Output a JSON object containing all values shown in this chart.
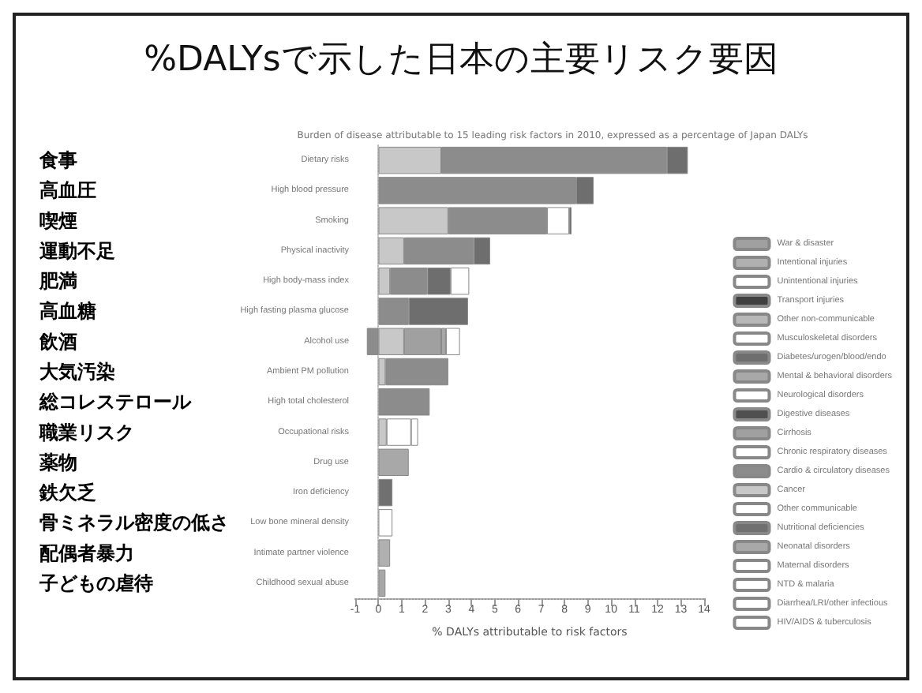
{
  "chart_data": {
    "type": "bar",
    "orientation": "horizontal",
    "stacked": true,
    "title": "%DALYsで示した日本の主要リスク要因",
    "subtitle": "Burden of disease attributable to 15 leading risk factors in 2010, expressed as a percentage of Japan DALYs",
    "xlabel": "% DALYs attributable to risk factors",
    "categories": [
      "Dietary risks",
      "High blood pressure",
      "Smoking",
      "Physical inactivity",
      "High body-mass index",
      "High fasting plasma glucose",
      "Alcohol use",
      "Ambient PM pollution",
      "High total cholesterol",
      "Occupational risks",
      "Drug use",
      "Iron deficiency",
      "Low bone mineral density",
      "Intimate partner violence",
      "Childhood sexual abuse"
    ],
    "y2_categories": [
      "食事",
      "高血圧",
      "喫煙",
      "運動不足",
      "肥満",
      "高血糖",
      "飲酒",
      "大気汚染",
      "総コレステロール",
      "職業リスク",
      "薬物",
      "鉄欠乏",
      "骨ミネラル密度の低さ",
      "配偶者暴力",
      "子どもの虐待"
    ],
    "xlim": [
      -1,
      14
    ],
    "xticks": [
      -1,
      0,
      1,
      2,
      3,
      4,
      5,
      6,
      7,
      8,
      9,
      10,
      11,
      12,
      13,
      14
    ],
    "legend": "right",
    "series": [
      {
        "name": "HIV/AIDS & tuberculosis",
        "color": "#ffffff",
        "values": [
          null,
          null,
          null,
          null,
          null,
          null,
          null,
          null,
          null,
          null,
          null,
          null,
          null,
          null,
          null
        ]
      },
      {
        "name": "Diarrhea/LRI/other infectious",
        "color": "#ffffff",
        "values": [
          null,
          null,
          null,
          null,
          null,
          null,
          null,
          null,
          null,
          null,
          null,
          null,
          null,
          null,
          null
        ]
      },
      {
        "name": "NTD & malaria",
        "color": "#ffffff",
        "values": [
          null,
          null,
          null,
          null,
          null,
          null,
          null,
          null,
          null,
          null,
          null,
          null,
          null,
          null,
          null
        ]
      },
      {
        "name": "Maternal disorders",
        "color": "#ffffff",
        "values": [
          null,
          null,
          null,
          null,
          null,
          null,
          null,
          null,
          null,
          null,
          null,
          null,
          null,
          null,
          null
        ]
      },
      {
        "name": "Neonatal disorders",
        "color": "#a8a8a8",
        "values": [
          null,
          null,
          null,
          null,
          null,
          null,
          null,
          null,
          null,
          null,
          null,
          null,
          null,
          null,
          null
        ]
      },
      {
        "name": "Nutritional deficiencies",
        "color": "#707070",
        "values": [
          null,
          null,
          null,
          null,
          null,
          null,
          null,
          null,
          null,
          null,
          null,
          0.6,
          null,
          null,
          null
        ]
      },
      {
        "name": "Other communicable",
        "color": "#ffffff",
        "values": [
          null,
          null,
          null,
          null,
          null,
          null,
          null,
          null,
          null,
          null,
          null,
          null,
          null,
          null,
          null
        ]
      },
      {
        "name": "Cancer",
        "color": "#c8c8c8",
        "values": [
          2.7,
          null,
          3.0,
          1.1,
          0.5,
          null,
          1.1,
          0.3,
          null,
          0.35,
          null,
          null,
          null,
          null,
          null
        ]
      },
      {
        "name": "Cardio & circulatory diseases",
        "color": "#8c8c8c",
        "values": [
          9.7,
          8.5,
          4.25,
          3.0,
          1.6,
          1.3,
          -0.5,
          2.7,
          2.2,
          null,
          null,
          null,
          null,
          null,
          null
        ]
      },
      {
        "name": "Chronic respiratory diseases",
        "color": "#ffffff",
        "values": [
          null,
          null,
          0.95,
          null,
          null,
          null,
          null,
          null,
          null,
          null,
          null,
          null,
          null,
          null,
          null
        ]
      },
      {
        "name": "Cirrhosis",
        "color": "#a0a0a0",
        "values": [
          null,
          null,
          null,
          null,
          null,
          null,
          1.6,
          null,
          null,
          null,
          null,
          null,
          null,
          null,
          null
        ]
      },
      {
        "name": "Digestive diseases",
        "color": "#505050",
        "values": [
          null,
          null,
          null,
          null,
          null,
          null,
          null,
          null,
          null,
          null,
          null,
          null,
          null,
          null,
          null
        ]
      },
      {
        "name": "Neurological disorders",
        "color": "#ffffff",
        "values": [
          null,
          null,
          null,
          null,
          null,
          null,
          null,
          null,
          null,
          null,
          null,
          null,
          null,
          null,
          null
        ]
      },
      {
        "name": "Mental & behavioral disorders",
        "color": "#a8a8a8",
        "values": [
          null,
          null,
          null,
          null,
          null,
          null,
          0.2,
          null,
          null,
          null,
          1.3,
          null,
          null,
          null,
          0.3
        ]
      },
      {
        "name": "Diabetes/urogen/blood/endo",
        "color": "#6e6e6e",
        "values": [
          0.9,
          0.75,
          0.1,
          0.7,
          1.0,
          2.55,
          null,
          null,
          null,
          null,
          null,
          null,
          null,
          null,
          null
        ]
      },
      {
        "name": "Musculoskeletal disorders",
        "color": "#ffffff",
        "values": [
          null,
          null,
          null,
          null,
          0.8,
          null,
          null,
          null,
          null,
          1.05,
          null,
          null,
          null,
          null,
          null
        ]
      },
      {
        "name": "Other non-communicable",
        "color": "#b8b8b8",
        "values": [
          null,
          null,
          null,
          null,
          null,
          null,
          null,
          null,
          null,
          null,
          null,
          null,
          null,
          null,
          null
        ]
      },
      {
        "name": "Transport injuries",
        "color": "#404040",
        "values": [
          null,
          null,
          null,
          null,
          null,
          null,
          null,
          null,
          null,
          null,
          null,
          null,
          null,
          null,
          null
        ]
      },
      {
        "name": "Unintentional injuries",
        "color": "#ffffff",
        "values": [
          null,
          null,
          null,
          null,
          null,
          null,
          0.6,
          null,
          null,
          0.3,
          null,
          null,
          0.6,
          null,
          null
        ]
      },
      {
        "name": "Intentional injuries",
        "color": "#b0b0b0",
        "values": [
          null,
          null,
          null,
          null,
          null,
          null,
          null,
          null,
          null,
          null,
          null,
          null,
          null,
          0.5,
          null
        ]
      },
      {
        "name": "War & disaster",
        "color": "#a0a0a0",
        "values": [
          null,
          null,
          null,
          null,
          null,
          null,
          null,
          null,
          null,
          null,
          null,
          null,
          null,
          null,
          null
        ]
      }
    ]
  }
}
